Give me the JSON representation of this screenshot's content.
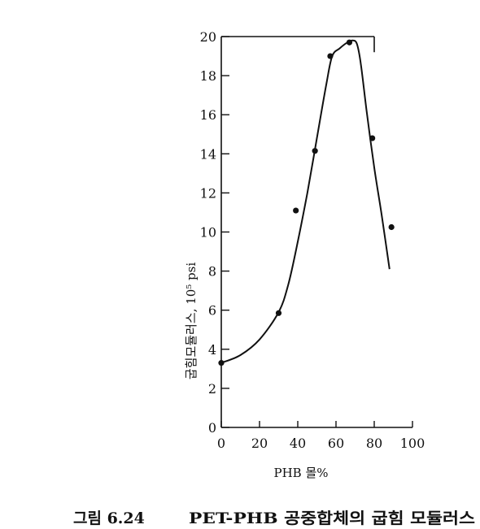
{
  "chart_data": {
    "type": "scatter",
    "xlabel": "PHB 몰%",
    "ylabel": "굽힘모듈러스, 10⁵ psi",
    "xlim": [
      0,
      100
    ],
    "ylim": [
      0,
      20
    ],
    "x_ticks": [
      0,
      20,
      40,
      60,
      80,
      100
    ],
    "y_ticks": [
      0,
      2,
      4,
      6,
      8,
      10,
      12,
      14,
      16,
      18,
      20
    ],
    "grid": false,
    "series": [
      {
        "x": [
          0,
          30,
          39,
          49,
          57,
          67,
          79,
          89
        ],
        "y": [
          3.3,
          5.85,
          11.1,
          14.15,
          19.0,
          19.7,
          14.8,
          10.25
        ]
      }
    ],
    "curve": {
      "x": [
        0,
        10,
        20,
        30,
        35,
        40,
        45,
        50,
        55,
        58,
        62,
        66,
        69,
        71,
        73,
        76,
        80,
        84,
        88
      ],
      "y": [
        3.3,
        3.7,
        4.5,
        5.9,
        7.3,
        9.5,
        12.0,
        14.8,
        17.6,
        19.0,
        19.4,
        19.7,
        19.8,
        19.6,
        18.6,
        16.2,
        13.3,
        10.8,
        8.1
      ]
    }
  },
  "caption": {
    "label": "그림 6.24",
    "text": "PET-PHB 공중합체의 굽힘 모듈러스"
  }
}
